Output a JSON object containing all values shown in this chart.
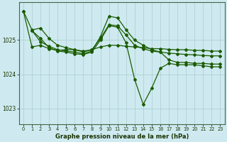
{
  "title": "Graphe pression niveau de la mer (hPa)",
  "bg_color": "#ceeaf0",
  "grid_color": "#aacccc",
  "line_color": "#1a5c00",
  "xlim": [
    -0.5,
    23.5
  ],
  "ylim": [
    1022.55,
    1026.1
  ],
  "yticks": [
    1023,
    1024,
    1025
  ],
  "xticks": [
    0,
    1,
    2,
    3,
    4,
    5,
    6,
    7,
    8,
    9,
    10,
    11,
    12,
    13,
    14,
    15,
    16,
    17,
    18,
    19,
    20,
    21,
    22,
    23
  ],
  "series": [
    {
      "x": [
        0,
        1,
        2,
        3,
        4,
        5,
        6,
        7,
        8,
        9,
        10,
        11,
        12,
        13,
        14,
        15,
        16,
        17,
        18,
        19,
        20,
        21,
        22,
        23
      ],
      "y": [
        1025.85,
        1024.8,
        1024.85,
        1024.75,
        1024.7,
        1024.72,
        1024.72,
        1024.68,
        1024.72,
        1024.8,
        1024.85,
        1024.85,
        1024.82,
        1024.8,
        1024.78,
        1024.75,
        1024.75,
        1024.73,
        1024.72,
        1024.72,
        1024.7,
        1024.7,
        1024.68,
        1024.68
      ]
    },
    {
      "x": [
        0,
        1,
        2,
        3,
        4,
        5,
        6,
        7,
        8,
        9,
        10,
        11,
        12,
        13,
        14,
        15,
        16,
        17,
        18,
        19,
        20,
        21,
        22,
        23
      ],
      "y": [
        1025.85,
        1025.3,
        1025.35,
        1025.05,
        1024.85,
        1024.78,
        1024.72,
        1024.65,
        1024.72,
        1025.05,
        1025.45,
        1025.42,
        1025.15,
        1024.85,
        1024.75,
        1024.68,
        1024.65,
        1024.62,
        1024.6,
        1024.58,
        1024.57,
        1024.55,
        1024.54,
        1024.54
      ]
    },
    {
      "x": [
        1,
        2,
        3,
        4,
        5,
        6,
        7,
        8,
        9,
        10,
        11,
        12,
        13,
        14,
        15,
        16,
        17,
        18,
        19,
        20,
        21,
        22,
        23
      ],
      "y": [
        1025.28,
        1024.95,
        1024.82,
        1024.72,
        1024.68,
        1024.65,
        1024.6,
        1024.68,
        1025.1,
        1025.7,
        1025.65,
        1025.3,
        1025.0,
        1024.85,
        1024.72,
        1024.65,
        1024.42,
        1024.35,
        1024.35,
        1024.32,
        1024.32,
        1024.3,
        1024.3
      ]
    },
    {
      "x": [
        1,
        2,
        3,
        4,
        5,
        6,
        7,
        8,
        9,
        10,
        11,
        12,
        13,
        14,
        15,
        16,
        17,
        18,
        19,
        20,
        21,
        22,
        23
      ],
      "y": [
        1025.28,
        1025.05,
        1024.78,
        1024.68,
        1024.65,
        1024.6,
        1024.58,
        1024.65,
        1025.0,
        1025.42,
        1025.38,
        1024.92,
        1023.85,
        1023.12,
        1023.6,
        1024.18,
        1024.32,
        1024.28,
        1024.28,
        1024.28,
        1024.25,
        1024.22,
        1024.22
      ]
    }
  ]
}
